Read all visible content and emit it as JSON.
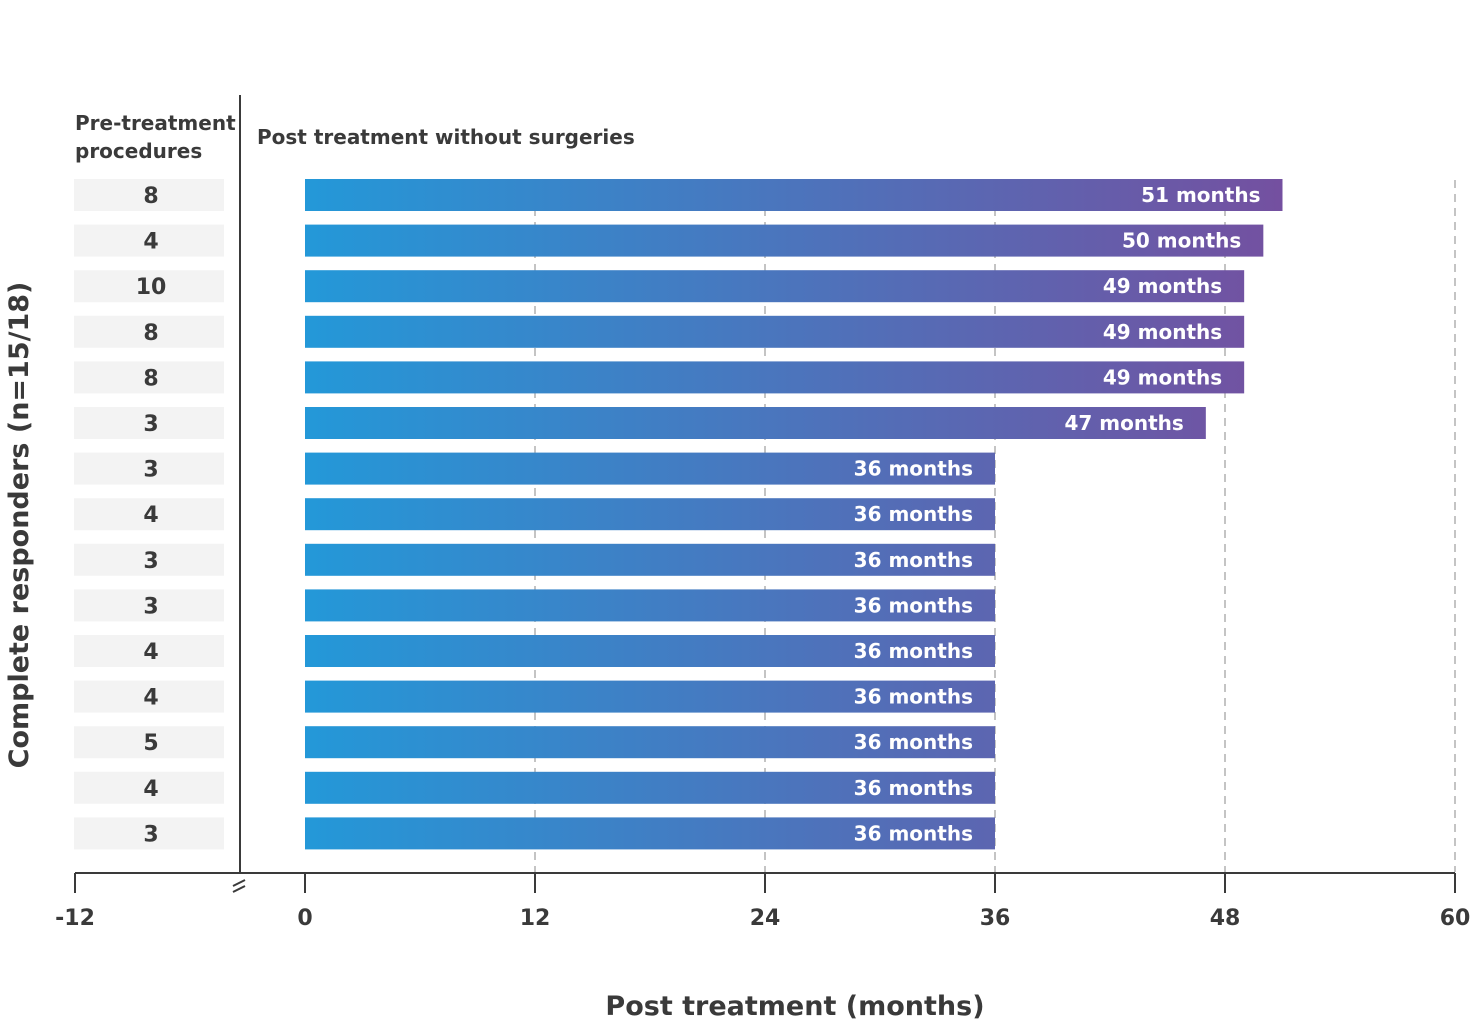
{
  "chart_data": {
    "type": "bar",
    "orientation": "horizontal",
    "title": "",
    "xlabel": "Post treatment (months)",
    "ylabel": "Complete responders (n=15/18)",
    "left_column_header": "Pre-treatment procedures",
    "bars_header": "Post treatment without surgeries",
    "x_ticks": [
      -12,
      0,
      12,
      24,
      36,
      48,
      60
    ],
    "x_tick_labels": [
      "-12",
      "0",
      "12",
      "24",
      "36",
      "48",
      "60"
    ],
    "xlim": [
      -12,
      60
    ],
    "axis_break_at": 0,
    "grid": "dashed vertical lines at 12, 24, 36, 48, 60",
    "gradient_colors": [
      "#1e9ddc",
      "#7450a0"
    ],
    "pre_treatment_procedures": [
      "8",
      "4",
      "10",
      "8",
      "8",
      "3",
      "3",
      "4",
      "3",
      "3",
      "4",
      "4",
      "5",
      "4",
      "3"
    ],
    "values": [
      51,
      50,
      49,
      49,
      49,
      47,
      36,
      36,
      36,
      36,
      36,
      36,
      36,
      36,
      36
    ],
    "value_labels": [
      "51 months",
      "50 months",
      "49 months",
      "49 months",
      "49 months",
      "47 months",
      "36 months",
      "36 months",
      "36 months",
      "36 months",
      "36 months",
      "36 months",
      "36 months",
      "36 months",
      "36 months"
    ]
  }
}
